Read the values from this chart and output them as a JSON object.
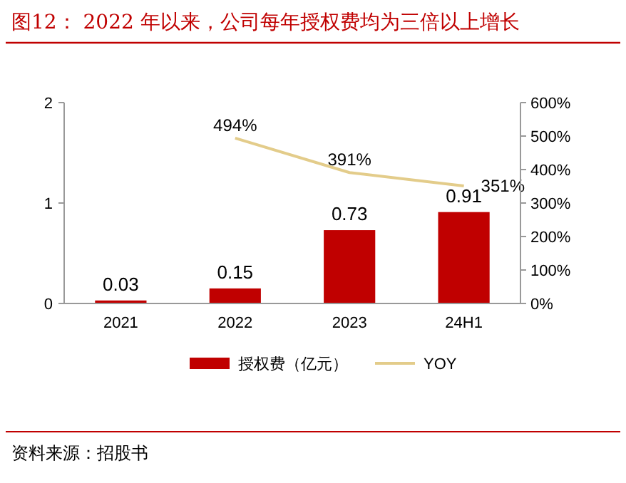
{
  "chart_data": {
    "type": "bar",
    "title": "图12：  2022 年以来，公司每年授权费均为三倍以上增长",
    "categories": [
      "2021",
      "2022",
      "2023",
      "24H1"
    ],
    "series": [
      {
        "name": "授权费（亿元）",
        "color": "#c00000",
        "values": [
          0.03,
          0.15,
          0.73,
          0.91
        ],
        "value_labels": [
          "0.03",
          "0.15",
          "0.73",
          "0.91"
        ]
      },
      {
        "name": "YOY",
        "type": "line",
        "axis": "y2",
        "color": "#e3cc8a",
        "values": [
          null,
          494,
          391,
          351
        ],
        "value_labels": [
          null,
          "494%",
          "391%",
          "351%"
        ]
      }
    ],
    "ylim": [
      0,
      2
    ],
    "yticks": [
      0,
      1,
      2
    ],
    "y2lim": [
      0,
      600
    ],
    "y2ticks": [
      {
        "value": 0,
        "label": "0%"
      },
      {
        "value": 100,
        "label": "100%"
      },
      {
        "value": 200,
        "label": "200%"
      },
      {
        "value": 300,
        "label": "300%"
      },
      {
        "value": 400,
        "label": "400%"
      },
      {
        "value": 500,
        "label": "500%"
      },
      {
        "value": 600,
        "label": "600%"
      }
    ],
    "legend": "bottom",
    "marker": "none",
    "line_style": "solid",
    "annotations": [
      "资料来源：招股书"
    ]
  }
}
